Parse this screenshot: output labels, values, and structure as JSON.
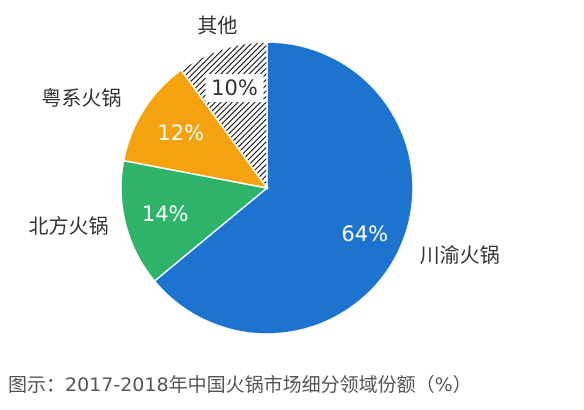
{
  "chart_data": {
    "type": "pie",
    "title": "图示：2017-2018年中国火锅市场细分领域份额（%）",
    "slices": [
      {
        "label": "川渝火锅",
        "value": 64,
        "value_label": "64%",
        "color": "#1c74d0",
        "pattern": "solid"
      },
      {
        "label": "北方火锅",
        "value": 14,
        "value_label": "14%",
        "color": "#2eb36b",
        "pattern": "solid"
      },
      {
        "label": "粤系火锅",
        "value": 12,
        "value_label": "12%",
        "color": "#f5a20f",
        "pattern": "solid"
      },
      {
        "label": "其他",
        "value": 10,
        "value_label": "10%",
        "color": "#000000",
        "pattern": "diagonal-hatch"
      }
    ],
    "start": "12 o'clock",
    "direction": "clockwise"
  },
  "caption": "图示：2017-2018年中国火锅市场细分领域份额（%）"
}
